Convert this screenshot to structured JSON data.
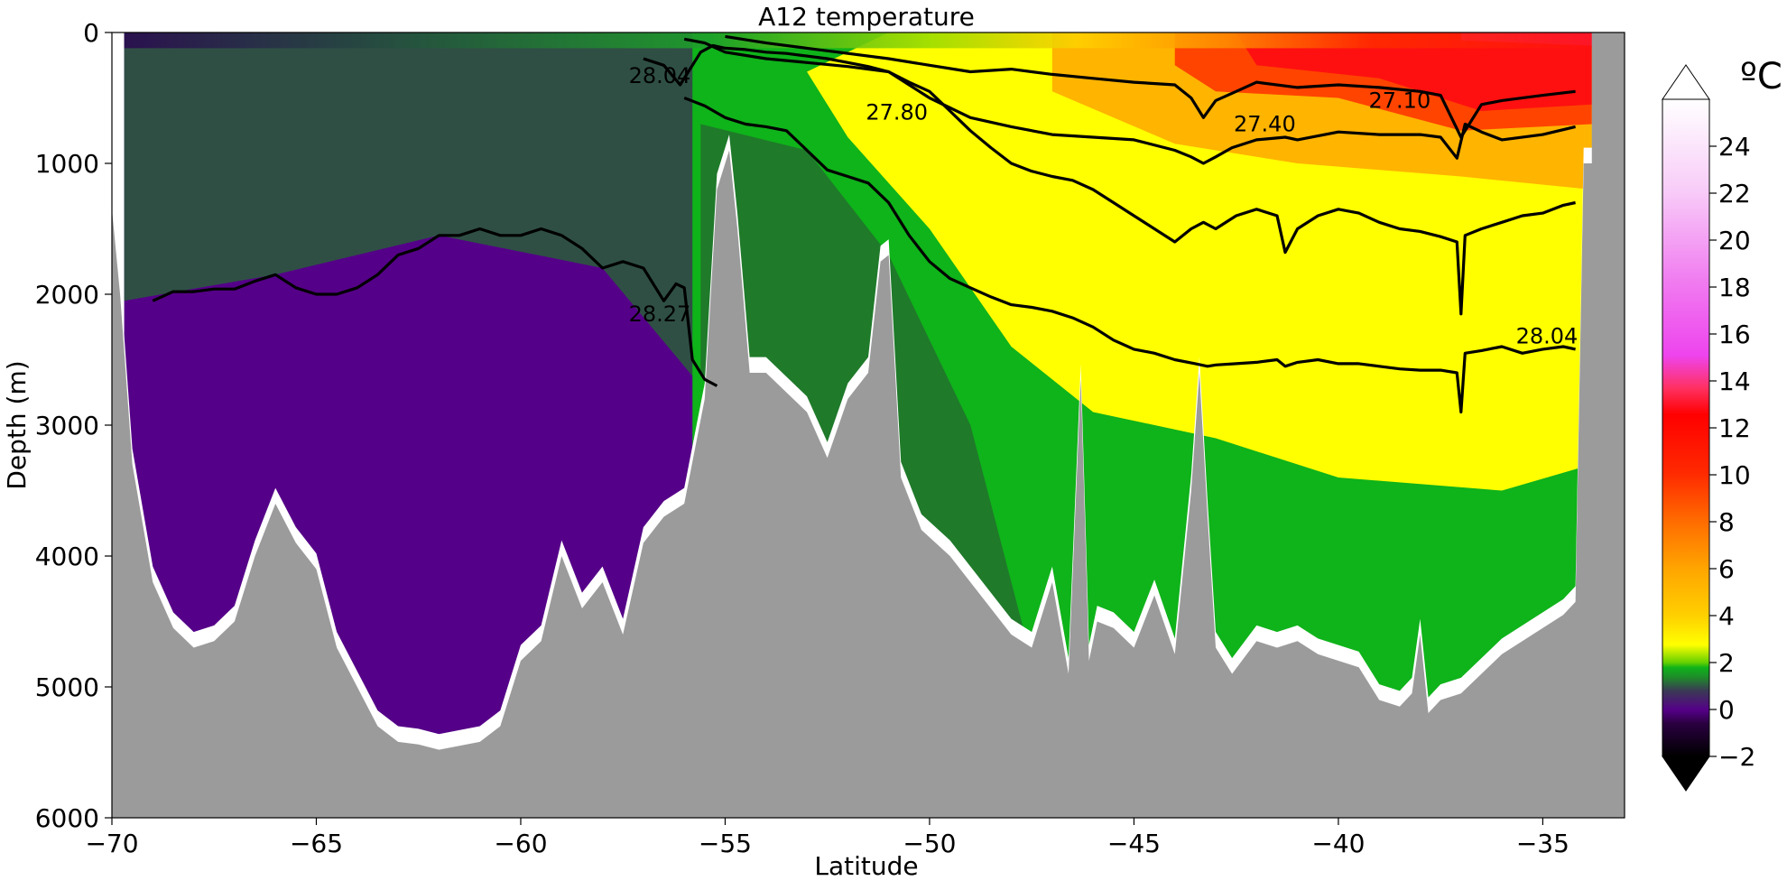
{
  "chart_data": {
    "type": "heatmap",
    "title": "A12 temperature",
    "xlabel": "Latitude",
    "ylabel": "Depth (m)",
    "xlim": [
      -70,
      -33
    ],
    "ylim": [
      6000,
      0
    ],
    "x_ticks": [
      -70,
      -65,
      -60,
      -55,
      -50,
      -45,
      -40,
      -35
    ],
    "y_ticks": [
      0,
      1000,
      2000,
      3000,
      4000,
      5000,
      6000
    ],
    "colorbar": {
      "label": "ºC",
      "range": [
        -2,
        26
      ],
      "ticks": [
        -2,
        0,
        2,
        4,
        6,
        8,
        10,
        12,
        14,
        16,
        18,
        20,
        22,
        24
      ],
      "colors": [
        "#000000",
        "#550088",
        "#0fb31a",
        "#ffff00",
        "#ffa500",
        "#ff0000",
        "#ee44ee",
        "#ffffff"
      ],
      "extend": "both"
    },
    "bathymetry": {
      "x": [
        -70,
        -69.8,
        -69.5,
        -69,
        -68.5,
        -68,
        -67.5,
        -67,
        -66.5,
        -66,
        -65.5,
        -65,
        -64.5,
        -64,
        -63.5,
        -63,
        -62.5,
        -62,
        -61.5,
        -61,
        -60.5,
        -60,
        -59.5,
        -59,
        -58.5,
        -58,
        -57.5,
        -57,
        -56.5,
        -56,
        -55.5,
        -55.2,
        -54.9,
        -54.7,
        -54.4,
        -54,
        -53.5,
        -53,
        -52.5,
        -52,
        -51.5,
        -51.2,
        -51,
        -50.7,
        -50.2,
        -49.5,
        -49,
        -48.5,
        -48,
        -47.5,
        -47,
        -46.6,
        -46.3,
        -46.1,
        -45.9,
        -45.5,
        -45,
        -44.5,
        -44,
        -43.6,
        -43.4,
        -43.2,
        -43,
        -42.6,
        -42,
        -41.5,
        -41,
        -40.5,
        -40,
        -39.5,
        -39,
        -38.5,
        -38.2,
        -38,
        -37.8,
        -37.5,
        -37,
        -36.5,
        -36,
        -35.5,
        -35,
        -34.5,
        -34.2,
        -34,
        -33
      ],
      "depth": [
        1350,
        2000,
        3300,
        4200,
        4550,
        4700,
        4650,
        4500,
        4000,
        3600,
        3900,
        4100,
        4700,
        5000,
        5300,
        5420,
        5440,
        5480,
        5450,
        5420,
        5300,
        4800,
        4650,
        4000,
        4400,
        4200,
        4600,
        3900,
        3700,
        3600,
        2800,
        1200,
        900,
        1500,
        2600,
        2600,
        2750,
        2900,
        3250,
        2800,
        2600,
        1750,
        1700,
        3400,
        3800,
        4000,
        4200,
        4400,
        4600,
        4700,
        4200,
        4900,
        2650,
        4800,
        4500,
        4550,
        4700,
        4300,
        4750,
        3500,
        2600,
        3700,
        4700,
        4900,
        4650,
        4700,
        4650,
        4750,
        4800,
        4850,
        5100,
        5150,
        5050,
        4600,
        5200,
        5100,
        5050,
        4900,
        4750,
        4650,
        4550,
        4450,
        4350,
        1000,
        1000
      ]
    },
    "isopycnals": [
      {
        "label": "27.10",
        "lat": [
          -55,
          -54,
          -53,
          -52,
          -51,
          -50,
          -49,
          -48,
          -47,
          -46,
          -45,
          -44,
          -43.6,
          -43.3,
          -43,
          -42.5,
          -42,
          -41,
          -40,
          -39,
          -38,
          -37.5,
          -37,
          -36.5,
          -36,
          -35,
          -34.2
        ],
        "depth": [
          30,
          80,
          120,
          160,
          200,
          250,
          300,
          280,
          320,
          350,
          380,
          400,
          500,
          650,
          520,
          450,
          380,
          420,
          400,
          420,
          450,
          480,
          800,
          550,
          520,
          480,
          450
        ]
      },
      {
        "label": "27.40",
        "lat": [
          -56,
          -55.5,
          -55,
          -54,
          -53,
          -52,
          -51,
          -50,
          -49,
          -48,
          -47,
          -46,
          -45,
          -44,
          -43.6,
          -43.3,
          -43,
          -42.6,
          -42,
          -41.3,
          -41,
          -40,
          -39,
          -38,
          -37.5,
          -37.1,
          -36.9,
          -36.5,
          -36,
          -35,
          -34.2
        ],
        "depth": [
          50,
          80,
          150,
          200,
          230,
          260,
          300,
          500,
          650,
          720,
          780,
          800,
          820,
          900,
          950,
          1000,
          950,
          880,
          820,
          800,
          820,
          760,
          780,
          780,
          800,
          960,
          700,
          760,
          820,
          780,
          720
        ]
      },
      {
        "label": "27.80",
        "lat": [
          -56,
          -55.5,
          -55,
          -54.5,
          -54,
          -53.5,
          -53,
          -52.5,
          -52,
          -51.5,
          -51,
          -50.5,
          -50,
          -49.5,
          -49,
          -48.5,
          -48,
          -47.5,
          -47,
          -46.5,
          -46,
          -45.5,
          -45,
          -44.5,
          -44,
          -43.5,
          -43.2,
          -43,
          -42.5,
          -42,
          -41.5,
          -41.3,
          -41,
          -40.5,
          -40,
          -39.5,
          -39,
          -38.5,
          -38,
          -37.5,
          -37.1,
          -37,
          -36.9,
          -36.5,
          -36,
          -35.5,
          -35,
          -34.5,
          -34.2
        ],
        "depth": [
          500,
          560,
          650,
          700,
          720,
          750,
          900,
          1050,
          1100,
          1150,
          1300,
          1550,
          1750,
          1880,
          1950,
          2020,
          2080,
          2100,
          2130,
          2180,
          2250,
          2350,
          2420,
          2450,
          2500,
          2530,
          2550,
          2540,
          2530,
          2520,
          2500,
          2550,
          2520,
          2500,
          2530,
          2530,
          2550,
          2570,
          2580,
          2580,
          2600,
          2900,
          2450,
          2430,
          2400,
          2450,
          2420,
          2400,
          2420
        ]
      },
      {
        "label": "28.04",
        "lat": [
          -57,
          -56.5,
          -56.1,
          -55.9,
          -55.6,
          -55.3,
          -55,
          -54.5,
          -54,
          -53.5,
          -53,
          -52.5,
          -52,
          -51.5,
          -51,
          -50.5,
          -50,
          -49.5,
          -49,
          -48.5,
          -48,
          -47.5,
          -47,
          -46.5,
          -46,
          -45.5,
          -45,
          -44.5,
          -44,
          -43.6,
          -43.3,
          -43,
          -42.5,
          -42,
          -41.5,
          -41.3,
          -41,
          -40.5,
          -40,
          -39.5,
          -39,
          -38.5,
          -38,
          -37.5,
          -37.1,
          -37,
          -36.9,
          -36.5,
          -36,
          -35.5,
          -35,
          -34.5,
          -34.2
        ],
        "depth": [
          200,
          250,
          400,
          300,
          150,
          100,
          120,
          130,
          150,
          160,
          180,
          200,
          230,
          260,
          300,
          380,
          450,
          600,
          750,
          880,
          1000,
          1060,
          1100,
          1130,
          1200,
          1300,
          1400,
          1500,
          1600,
          1500,
          1450,
          1500,
          1400,
          1350,
          1400,
          1680,
          1500,
          1400,
          1350,
          1380,
          1450,
          1500,
          1520,
          1560,
          1600,
          2150,
          1550,
          1500,
          1450,
          1400,
          1380,
          1320,
          1300
        ]
      },
      {
        "label": "28.27",
        "lat": [
          -69,
          -68.5,
          -68,
          -67.5,
          -67,
          -66.5,
          -66,
          -65.5,
          -65,
          -64.5,
          -64,
          -63.5,
          -63,
          -62.5,
          -62,
          -61.5,
          -61,
          -60.5,
          -60,
          -59.5,
          -59,
          -58.5,
          -58,
          -57.5,
          -57,
          -56.5,
          -56.2,
          -56,
          -55.8,
          -55.5,
          -55.2
        ],
        "depth": [
          2050,
          1980,
          1980,
          1960,
          1960,
          1900,
          1850,
          1950,
          2000,
          2000,
          1950,
          1850,
          1700,
          1650,
          1550,
          1550,
          1500,
          1550,
          1550,
          1500,
          1550,
          1650,
          1800,
          1750,
          1800,
          2050,
          1920,
          1950,
          2500,
          2650,
          2700
        ]
      }
    ],
    "contour_labels": [
      {
        "text": "28.04",
        "lat": -56.6,
        "depth": 330
      },
      {
        "text": "27.80",
        "lat": -50.8,
        "depth": 610
      },
      {
        "text": "27.40",
        "lat": -41.8,
        "depth": 700
      },
      {
        "text": "27.10",
        "lat": -38.5,
        "depth": 520
      },
      {
        "text": "28.27",
        "lat": -56.6,
        "depth": 2150
      },
      {
        "text": "28.04",
        "lat": -34.9,
        "depth": 2320
      }
    ]
  }
}
